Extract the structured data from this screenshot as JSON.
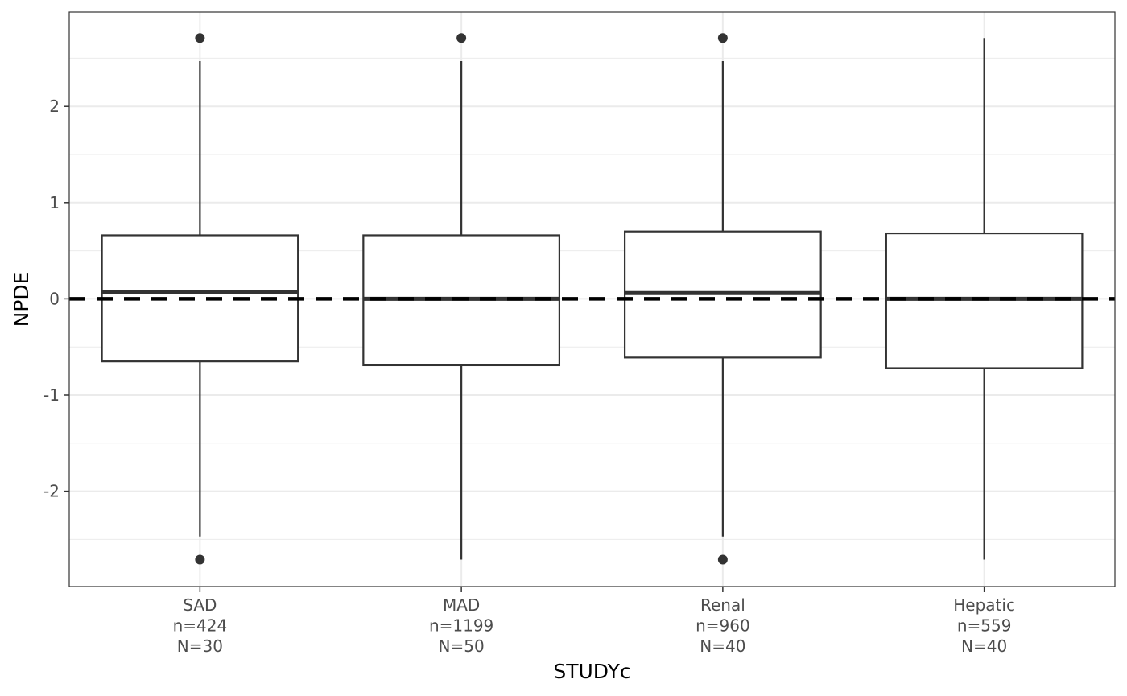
{
  "chart_data": {
    "type": "box",
    "xlabel": "STUDYc",
    "ylabel": "NPDE",
    "ylim": [
      -2.99,
      2.98
    ],
    "yticks": [
      -2,
      -1,
      0,
      1,
      2
    ],
    "ytick_labels": [
      "-2",
      "-1",
      "0",
      "1",
      "2"
    ],
    "reference_line": {
      "y": 0,
      "style": "dashed",
      "color": "#000000"
    },
    "grid": true,
    "categories": [
      {
        "label": [
          "SAD",
          "n=424",
          "N=30"
        ]
      },
      {
        "label": [
          "MAD",
          "n=1199",
          "N=50"
        ]
      },
      {
        "label": [
          "Renal",
          "n=960",
          "N=40"
        ]
      },
      {
        "label": [
          "Hepatic",
          "n=559",
          "N=40"
        ]
      }
    ],
    "boxes": [
      {
        "q1": -0.65,
        "median": 0.07,
        "q3": 0.66,
        "whisker_low": -2.47,
        "whisker_high": 2.47,
        "outliers": [
          2.71,
          -2.71
        ]
      },
      {
        "q1": -0.69,
        "median": 0.0,
        "q3": 0.66,
        "whisker_low": -2.71,
        "whisker_high": 2.47,
        "outliers": [
          2.71
        ]
      },
      {
        "q1": -0.61,
        "median": 0.06,
        "q3": 0.7,
        "whisker_low": -2.47,
        "whisker_high": 2.47,
        "outliers": [
          2.71,
          -2.71
        ]
      },
      {
        "q1": -0.72,
        "median": 0.0,
        "q3": 0.68,
        "whisker_low": -2.71,
        "whisker_high": 2.71,
        "outliers": []
      }
    ],
    "colors": {
      "box": "#333333",
      "box_fill": "#ffffff",
      "grid": "#ebebeb",
      "panel_border": "#333333",
      "tick_text": "#4d4d4d"
    }
  }
}
